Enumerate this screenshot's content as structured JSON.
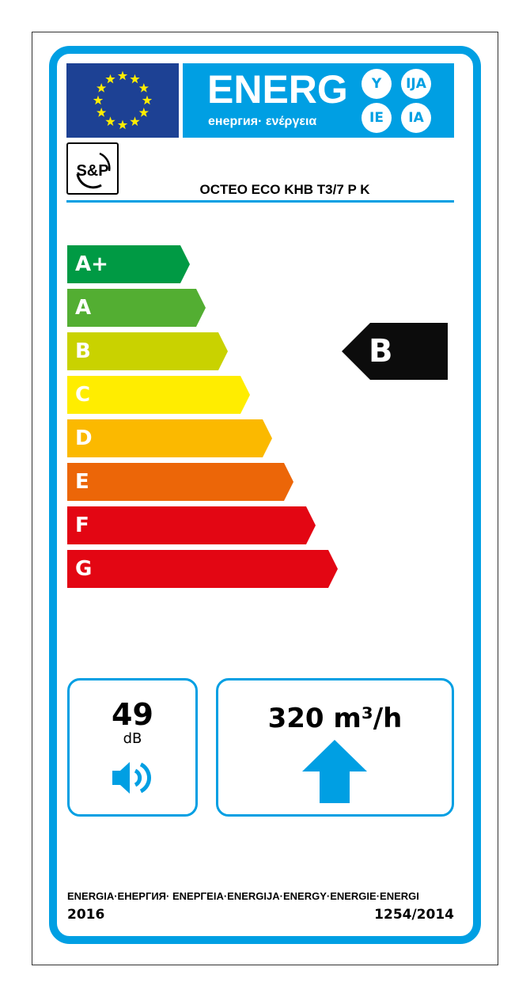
{
  "header": {
    "title": "ENERG",
    "subtitle": "енергия· ενέργεια",
    "lang_circles": [
      "Y",
      "IJA",
      "IE",
      "IA"
    ],
    "eu_flag": "eu-flag-icon",
    "brand_logo": "S&P"
  },
  "model": "OCTEO ECO KHB T3/7 P K",
  "scale": [
    {
      "label": "A+",
      "color": "#009a44"
    },
    {
      "label": "A",
      "color": "#53ae32"
    },
    {
      "label": "B",
      "color": "#c9d200"
    },
    {
      "label": "C",
      "color": "#ffed00"
    },
    {
      "label": "D",
      "color": "#fbb900"
    },
    {
      "label": "E",
      "color": "#ec6608"
    },
    {
      "label": "F",
      "color": "#e30613"
    },
    {
      "label": "G",
      "color": "#e30613"
    }
  ],
  "rating": {
    "label": "B",
    "color": "#0c0c0c"
  },
  "noise": {
    "value": "49",
    "unit": "dB",
    "icon": "speaker-icon"
  },
  "airflow": {
    "value": "320 m³/h",
    "icon": "arrow-up-icon"
  },
  "footer": {
    "languages": "ENERGIA·ЕНЕРГИЯ· ΕΝΕΡΓΕΙΑ·ENERGIJA·ENERGY·ENERGIE·ENERGI",
    "year": "2016",
    "regulation": "1254/2014"
  },
  "accent": "#009fe3"
}
